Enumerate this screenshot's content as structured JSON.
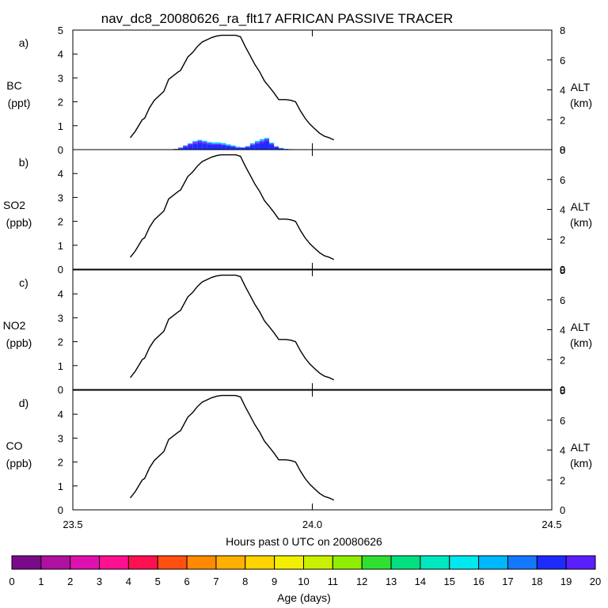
{
  "chart_data": {
    "type": "line",
    "title": "nav_dc8_20080626_ra_flt17 AFRICAN PASSIVE TRACER",
    "xlabel": "Hours past 0 UTC on 20080626",
    "xlim": [
      23.5,
      24.5
    ],
    "x_ticks": [
      "23.5",
      "24.0",
      "24.5"
    ],
    "altitude_track": {
      "name": "ALT (km)",
      "x": [
        23.62,
        23.63,
        23.645,
        23.65,
        23.66,
        23.67,
        23.69,
        23.7,
        23.72,
        23.725,
        23.74,
        23.75,
        23.76,
        23.77,
        23.79,
        23.8,
        23.81,
        23.82,
        23.83,
        23.84,
        23.85,
        23.86,
        23.87,
        23.88,
        23.89,
        23.9,
        23.91,
        23.92,
        23.93,
        23.945,
        23.955,
        23.965,
        23.975,
        23.985,
        23.995,
        24.005,
        24.015,
        24.025,
        24.035,
        24.045
      ],
      "y": [
        0.8,
        1.2,
        2.0,
        2.1,
        2.8,
        3.3,
        3.9,
        4.7,
        5.2,
        5.3,
        6.2,
        6.5,
        6.9,
        7.2,
        7.5,
        7.6,
        7.65,
        7.65,
        7.65,
        7.65,
        7.55,
        6.9,
        6.3,
        5.7,
        5.2,
        4.6,
        4.2,
        3.8,
        3.35,
        3.35,
        3.3,
        3.2,
        2.6,
        2.1,
        1.7,
        1.4,
        1.1,
        0.9,
        0.8,
        0.65
      ]
    },
    "panels": [
      {
        "label": "a)",
        "species": "BC",
        "units": "(ppt)",
        "ylim": [
          0,
          5
        ],
        "y_ticks": [
          "0",
          "1",
          "2",
          "3",
          "4",
          "5"
        ],
        "right_label": "ALT",
        "right_units": "(km)",
        "right_ylim": [
          0,
          8
        ],
        "right_ticks": [
          "0",
          "2",
          "4",
          "6",
          "8"
        ],
        "series": [
          {
            "name": "Age 17-18 days",
            "color": "#1e2bff",
            "x": [
              23.71,
              23.72,
              23.73,
              23.74,
              23.75,
              23.76,
              23.77,
              23.78,
              23.79,
              23.8,
              23.81,
              23.82,
              23.83,
              23.84,
              23.85,
              23.86,
              23.87,
              23.88,
              23.89,
              23.9,
              23.91,
              23.92,
              23.93,
              23.94,
              23.95
            ],
            "y": [
              0.03,
              0.06,
              0.12,
              0.18,
              0.24,
              0.28,
              0.26,
              0.22,
              0.2,
              0.2,
              0.18,
              0.15,
              0.12,
              0.08,
              0.07,
              0.1,
              0.18,
              0.24,
              0.28,
              0.35,
              0.2,
              0.1,
              0.05,
              0.03,
              0.02
            ]
          },
          {
            "name": "Age 18-19 days",
            "color": "#7b1fff",
            "x": [
              23.71,
              23.72,
              23.73,
              23.74,
              23.75,
              23.76,
              23.77,
              23.78,
              23.79,
              23.8,
              23.81,
              23.82,
              23.83,
              23.84,
              23.85,
              23.86,
              23.87,
              23.88,
              23.89,
              23.9,
              23.91,
              23.92,
              23.93,
              23.94,
              23.95
            ],
            "y": [
              0.0,
              0.02,
              0.04,
              0.06,
              0.08,
              0.08,
              0.06,
              0.05,
              0.04,
              0.04,
              0.03,
              0.02,
              0.02,
              0.01,
              0.01,
              0.02,
              0.04,
              0.06,
              0.08,
              0.08,
              0.05,
              0.02,
              0.01,
              0.0,
              0.0
            ]
          },
          {
            "name": "Age 15-16 days",
            "color": "#00c8ff",
            "x": [
              23.71,
              23.72,
              23.73,
              23.74,
              23.75,
              23.76,
              23.77,
              23.78,
              23.79,
              23.8,
              23.81,
              23.82,
              23.83,
              23.84,
              23.85,
              23.86,
              23.87,
              23.88,
              23.89,
              23.9,
              23.91,
              23.92,
              23.93,
              23.94,
              23.95
            ],
            "y": [
              0.0,
              0.01,
              0.02,
              0.03,
              0.04,
              0.05,
              0.05,
              0.05,
              0.06,
              0.06,
              0.06,
              0.05,
              0.04,
              0.03,
              0.02,
              0.03,
              0.05,
              0.06,
              0.08,
              0.06,
              0.04,
              0.02,
              0.01,
              0.0,
              0.0
            ]
          }
        ]
      },
      {
        "label": "b)",
        "species": "SO2",
        "units": "(ppb)",
        "ylim": [
          0,
          5
        ],
        "y_ticks": [
          "0",
          "1",
          "2",
          "3",
          "4"
        ],
        "right_label": "ALT",
        "right_units": "(km)",
        "right_ylim": [
          0,
          8
        ],
        "right_ticks": [
          "0",
          "2",
          "4",
          "6",
          "8"
        ],
        "series": []
      },
      {
        "label": "c)",
        "species": "NO2",
        "units": "(ppb)",
        "ylim": [
          0,
          5
        ],
        "y_ticks": [
          "0",
          "1",
          "2",
          "3",
          "4"
        ],
        "right_label": "ALT",
        "right_units": "(km)",
        "right_ylim": [
          0,
          8
        ],
        "right_ticks": [
          "0",
          "2",
          "4",
          "6",
          "8"
        ],
        "series": []
      },
      {
        "label": "d)",
        "species": "CO",
        "units": "(ppb)",
        "ylim": [
          0,
          5
        ],
        "y_ticks": [
          "0",
          "1",
          "2",
          "3",
          "4"
        ],
        "right_label": "ALT",
        "right_units": "(km)",
        "right_ylim": [
          0,
          8
        ],
        "right_ticks": [
          "0",
          "2",
          "4",
          "6",
          "8"
        ],
        "series": []
      }
    ],
    "colorbar": {
      "label": "Age (days)",
      "ticks": [
        "0",
        "1",
        "2",
        "3",
        "4",
        "5",
        "6",
        "7",
        "8",
        "9",
        "10",
        "11",
        "12",
        "13",
        "14",
        "15",
        "16",
        "17",
        "18",
        "19",
        "20"
      ],
      "colors": [
        "#7a0a8a",
        "#b0109f",
        "#e010b0",
        "#ff1090",
        "#ff1050",
        "#ff5010",
        "#ff8a00",
        "#ffb000",
        "#ffd400",
        "#f2f000",
        "#c8f000",
        "#90ee00",
        "#30e030",
        "#00e080",
        "#00e8c0",
        "#00e8f0",
        "#00b8ff",
        "#1478ff",
        "#1e2bff",
        "#5a1eff"
      ]
    }
  }
}
